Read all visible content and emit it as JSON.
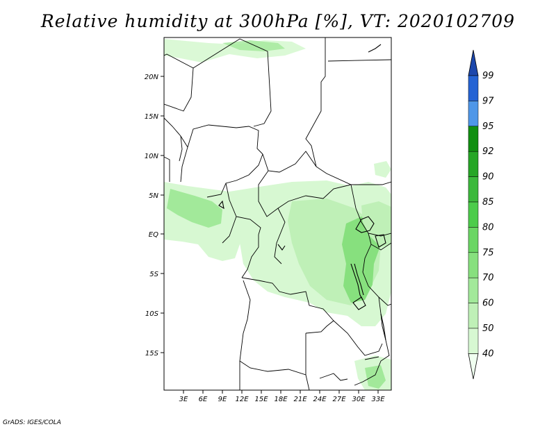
{
  "title": "Relative humidity at 300hPa [%], VT: 2020102709",
  "footer": "GrADS: IGES/COLA",
  "map": {
    "lat_labels": [
      "20N",
      "15N",
      "10N",
      "5N",
      "EQ",
      "5S",
      "10S",
      "15S"
    ],
    "lon_labels": [
      "3E",
      "6E",
      "9E",
      "12E",
      "15E",
      "18E",
      "21E",
      "24E",
      "27E",
      "30E",
      "33E"
    ]
  },
  "colorbar": {
    "levels": [
      "40",
      "50",
      "60",
      "70",
      "75",
      "80",
      "85",
      "90",
      "92",
      "95",
      "97",
      "99"
    ],
    "colors": [
      "#f0fff0",
      "#d7f8d2",
      "#bff0b7",
      "#a2e99a",
      "#87e07e",
      "#6ad664",
      "#4ccc4b",
      "#3cb93c",
      "#26a626",
      "#118f11",
      "#4f97e8",
      "#2563d4",
      "#1c47ac"
    ]
  }
}
